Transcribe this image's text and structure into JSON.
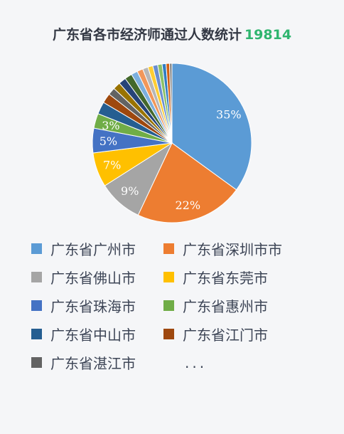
{
  "header": {
    "title": "广东省各市经济师通过人数统计",
    "total": "19814"
  },
  "chart_data": {
    "type": "pie",
    "title": "广东省各市经济师通过人数统计 19814",
    "slices": [
      {
        "name": "广东省广州市",
        "value": 35,
        "label": "35%",
        "color": "#5b9bd5"
      },
      {
        "name": "广东省深圳市市",
        "value": 22,
        "label": "22%",
        "color": "#ed7d31"
      },
      {
        "name": "广东省佛山市",
        "value": 9,
        "label": "9%",
        "color": "#a5a5a5"
      },
      {
        "name": "广东省东莞市",
        "value": 7,
        "label": "7%",
        "color": "#ffc000"
      },
      {
        "name": "广东省珠海市",
        "value": 5,
        "label": "5%",
        "color": "#4472c4"
      },
      {
        "name": "广东省惠州市",
        "value": 3,
        "label": "3%",
        "color": "#70ad47"
      },
      {
        "name": "广东省中山市",
        "value": 2.5,
        "label": "",
        "color": "#255e91"
      },
      {
        "name": "广东省江门市",
        "value": 2.0,
        "label": "",
        "color": "#9e480e"
      },
      {
        "name": "广东省湛江市",
        "value": 1.5,
        "label": "",
        "color": "#636363"
      },
      {
        "name": "",
        "value": 1.5,
        "label": "",
        "color": "#997300"
      },
      {
        "name": "",
        "value": 1.5,
        "label": "",
        "color": "#264478"
      },
      {
        "name": "",
        "value": 1.5,
        "label": "",
        "color": "#43682b"
      },
      {
        "name": "",
        "value": 1.3,
        "label": "",
        "color": "#7cafdd"
      },
      {
        "name": "",
        "value": 1.2,
        "label": "",
        "color": "#f1975a"
      },
      {
        "name": "",
        "value": 1.1,
        "label": "",
        "color": "#b7b7b7"
      },
      {
        "name": "",
        "value": 1.0,
        "label": "",
        "color": "#ffcd33"
      },
      {
        "name": "",
        "value": 1.0,
        "label": "",
        "color": "#698ed0"
      },
      {
        "name": "",
        "value": 0.9,
        "label": "",
        "color": "#8cc168"
      },
      {
        "name": "",
        "value": 0.8,
        "label": "",
        "color": "#327dc2"
      },
      {
        "name": "",
        "value": 0.7,
        "label": "",
        "color": "#d26012"
      },
      {
        "name": "",
        "value": 0.5,
        "label": "",
        "color": "#848484"
      }
    ],
    "legend_placement": "bottom",
    "legend_more": "..."
  }
}
